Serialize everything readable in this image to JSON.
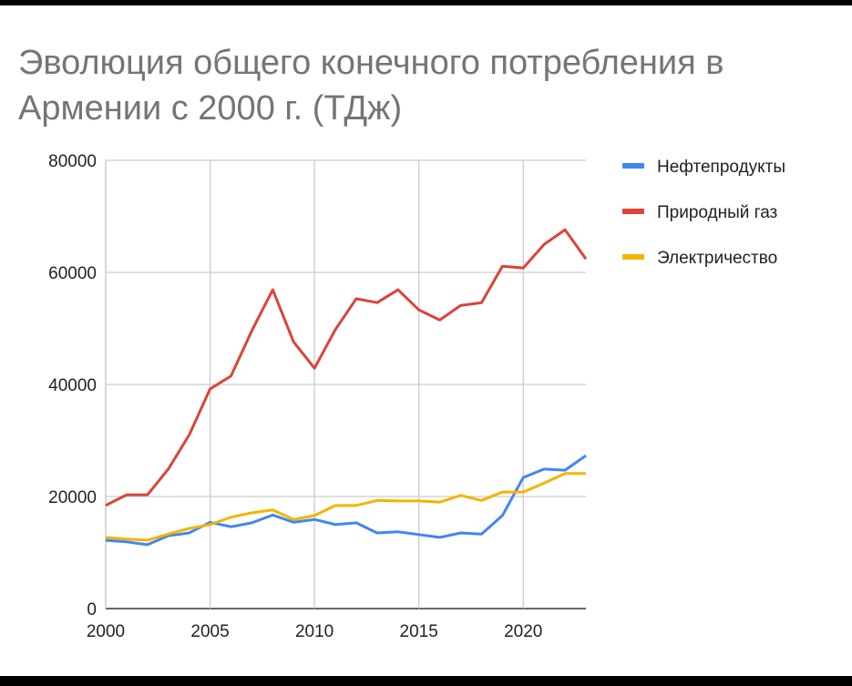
{
  "chart_data": {
    "type": "line",
    "title": "Эволюция общего конечного потребления в Армении с 2000 г. (ТДж)",
    "xlabel": "",
    "ylabel": "",
    "x": [
      2000,
      2001,
      2002,
      2003,
      2004,
      2005,
      2006,
      2007,
      2008,
      2009,
      2010,
      2011,
      2012,
      2013,
      2014,
      2015,
      2016,
      2017,
      2018,
      2019,
      2020,
      2021,
      2022,
      2023
    ],
    "xlim": [
      2000,
      2023
    ],
    "ylim": [
      0,
      80000
    ],
    "x_ticks": [
      "2000",
      "2005",
      "2010",
      "2015",
      "2020"
    ],
    "y_ticks": [
      "0",
      "20000",
      "40000",
      "60000",
      "80000"
    ],
    "grid": true,
    "legend_position": "right",
    "series": [
      {
        "name": "Нефтепродукты",
        "color": "#4285f4",
        "values": [
          12200,
          11900,
          11400,
          13000,
          13500,
          15400,
          14600,
          15300,
          16700,
          15400,
          15900,
          15000,
          15300,
          13500,
          13700,
          13200,
          12700,
          13500,
          13300,
          16600,
          23400,
          24900,
          24700,
          27300
        ]
      },
      {
        "name": "Природный газ",
        "color": "#db4437",
        "values": [
          18400,
          20300,
          20300,
          24900,
          31000,
          39200,
          41500,
          49600,
          56900,
          47600,
          42900,
          49800,
          55300,
          54600,
          56900,
          53300,
          51500,
          54100,
          54600,
          61100,
          60800,
          65000,
          67600,
          62400
        ]
      },
      {
        "name": "Электричество",
        "color": "#f4b400",
        "values": [
          12700,
          12400,
          12200,
          13300,
          14300,
          15000,
          16300,
          17100,
          17600,
          15900,
          16600,
          18400,
          18400,
          19300,
          19200,
          19200,
          19000,
          20200,
          19300,
          20800,
          20800,
          22400,
          24100,
          24100
        ]
      }
    ]
  }
}
